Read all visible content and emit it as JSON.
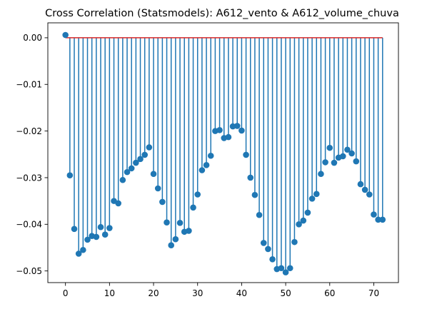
{
  "chart_data": {
    "type": "stem",
    "title": "Cross Correlation (Statsmodels): A612_vento & A612_volume_chuva",
    "xlabel": "",
    "ylabel": "",
    "xlim": [
      -4,
      75.6
    ],
    "ylim": [
      -0.0525,
      0.0032
    ],
    "x_ticks": [
      0,
      10,
      20,
      30,
      40,
      50,
      60,
      70
    ],
    "x_tick_labels": [
      "0",
      "10",
      "20",
      "30",
      "40",
      "50",
      "60",
      "70"
    ],
    "y_ticks": [
      0.0,
      -0.01,
      -0.02,
      -0.03,
      -0.04,
      -0.05
    ],
    "y_tick_labels": [
      "0.00",
      "−0.01",
      "−0.02",
      "−0.03",
      "−0.04",
      "−0.05"
    ],
    "grid": false,
    "colors": {
      "stem": "#1f77b4",
      "marker": "#1f77b4",
      "baseline": "#d62728"
    },
    "x": [
      0,
      1,
      2,
      3,
      4,
      5,
      6,
      7,
      8,
      9,
      10,
      11,
      12,
      13,
      14,
      15,
      16,
      17,
      18,
      19,
      20,
      21,
      22,
      23,
      24,
      25,
      26,
      27,
      28,
      29,
      30,
      31,
      32,
      33,
      34,
      35,
      36,
      37,
      38,
      39,
      40,
      41,
      42,
      43,
      44,
      45,
      46,
      47,
      48,
      49,
      50,
      51,
      52,
      53,
      54,
      55,
      56,
      57,
      58,
      59,
      60,
      61,
      62,
      63,
      64,
      65,
      66,
      67,
      68,
      69,
      70,
      71,
      72
    ],
    "values": [
      0.0006,
      -0.0295,
      -0.041,
      -0.0463,
      -0.0455,
      -0.0433,
      -0.0425,
      -0.0427,
      -0.0406,
      -0.0422,
      -0.0408,
      -0.035,
      -0.0355,
      -0.0305,
      -0.0288,
      -0.028,
      -0.0268,
      -0.026,
      -0.0251,
      -0.0235,
      -0.0292,
      -0.0323,
      -0.0352,
      -0.0396,
      -0.0445,
      -0.0432,
      -0.0397,
      -0.0416,
      -0.0414,
      -0.0364,
      -0.0336,
      -0.0284,
      -0.0273,
      -0.0253,
      -0.02,
      -0.0198,
      -0.0215,
      -0.0213,
      -0.019,
      -0.0189,
      -0.0199,
      -0.0251,
      -0.03,
      -0.0337,
      -0.038,
      -0.044,
      -0.0453,
      -0.0475,
      -0.0496,
      -0.0494,
      -0.0503,
      -0.0494,
      -0.0438,
      -0.04,
      -0.0392,
      -0.0375,
      -0.0345,
      -0.0335,
      -0.0292,
      -0.0267,
      -0.0236,
      -0.0268,
      -0.0257,
      -0.0254,
      -0.024,
      -0.0248,
      -0.0265,
      -0.0314,
      -0.0326,
      -0.0336,
      -0.0379,
      -0.039,
      -0.039
    ]
  }
}
